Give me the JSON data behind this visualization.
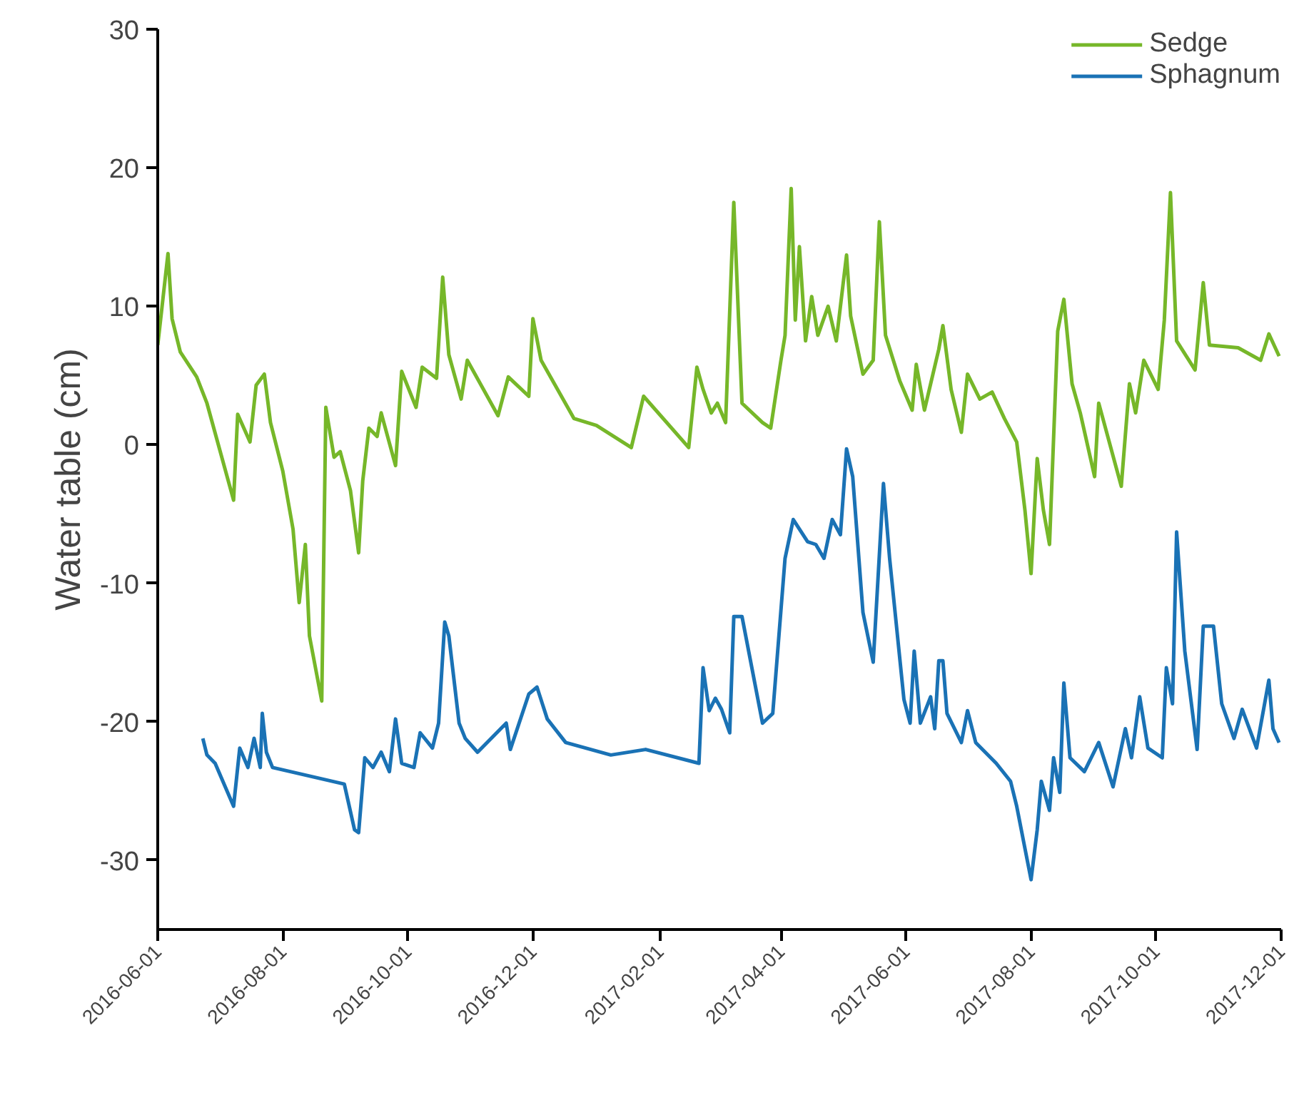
{
  "chart_data": {
    "type": "line",
    "ylabel": "Water table (cm)",
    "xlim": [
      "2016-06-01",
      "2017-12-01"
    ],
    "xticks": [
      "2016-06-01",
      "2016-08-01",
      "2016-10-01",
      "2016-12-01",
      "2017-02-01",
      "2017-04-01",
      "2017-06-01",
      "2017-08-01",
      "2017-10-01",
      "2017-12-01"
    ],
    "ylim": [
      -35,
      30
    ],
    "yticks": [
      -30,
      -20,
      -10,
      0,
      10,
      20,
      30
    ],
    "grid": false,
    "legend": "top right",
    "line_style": "solid",
    "marker": "none",
    "series": [
      {
        "name": "Sedge",
        "color": "#76b729",
        "x": [
          "2016-06-01",
          "2016-06-06",
          "2016-06-08",
          "2016-06-12",
          "2016-06-20",
          "2016-06-25",
          "2016-07-08",
          "2016-07-10",
          "2016-07-16",
          "2016-07-19",
          "2016-07-23",
          "2016-07-26",
          "2016-08-01",
          "2016-08-06",
          "2016-08-09",
          "2016-08-12",
          "2016-08-14",
          "2016-08-20",
          "2016-08-22",
          "2016-08-26",
          "2016-08-29",
          "2016-09-03",
          "2016-09-07",
          "2016-09-09",
          "2016-09-12",
          "2016-09-16",
          "2016-09-18",
          "2016-09-25",
          "2016-09-28",
          "2016-10-05",
          "2016-10-08",
          "2016-10-15",
          "2016-10-18",
          "2016-10-21",
          "2016-10-27",
          "2016-10-30",
          "2016-11-14",
          "2016-11-19",
          "2016-11-29",
          "2016-12-01",
          "2016-12-05",
          "2016-12-21",
          "2017-01-01",
          "2017-01-18",
          "2017-01-24",
          "2017-02-15",
          "2017-02-19",
          "2017-02-22",
          "2017-02-26",
          "2017-03-01",
          "2017-03-05",
          "2017-03-09",
          "2017-03-13",
          "2017-03-23",
          "2017-03-27",
          "2017-04-01",
          "2017-04-03",
          "2017-04-06",
          "2017-04-08",
          "2017-04-10",
          "2017-04-13",
          "2017-04-16",
          "2017-04-19",
          "2017-04-24",
          "2017-04-28",
          "2017-05-03",
          "2017-05-05",
          "2017-05-11",
          "2017-05-16",
          "2017-05-19",
          "2017-05-22",
          "2017-05-29",
          "2017-06-04",
          "2017-06-06",
          "2017-06-10",
          "2017-06-17",
          "2017-06-19",
          "2017-06-23",
          "2017-06-28",
          "2017-07-01",
          "2017-07-07",
          "2017-07-13",
          "2017-07-19",
          "2017-07-25",
          "2017-07-29",
          "2017-08-01",
          "2017-08-04",
          "2017-08-07",
          "2017-08-10",
          "2017-08-14",
          "2017-08-17",
          "2017-08-21",
          "2017-08-25",
          "2017-09-01",
          "2017-09-03",
          "2017-09-14",
          "2017-09-18",
          "2017-09-21",
          "2017-09-25",
          "2017-10-02",
          "2017-10-05",
          "2017-10-08",
          "2017-10-11",
          "2017-10-20",
          "2017-10-24",
          "2017-10-27",
          "2017-11-10",
          "2017-11-21",
          "2017-11-25",
          "2017-11-30"
        ],
        "values": [
          7.2,
          13.8,
          9.1,
          6.7,
          4.9,
          3.0,
          -4.0,
          2.2,
          0.2,
          4.3,
          5.1,
          1.6,
          -1.9,
          -6.1,
          -11.4,
          -7.2,
          -13.8,
          -18.5,
          2.7,
          -0.9,
          -0.5,
          -3.3,
          -7.8,
          -2.6,
          1.2,
          0.6,
          2.3,
          -1.5,
          5.3,
          2.7,
          5.6,
          4.8,
          12.1,
          6.5,
          3.3,
          6.1,
          2.1,
          4.9,
          3.5,
          9.1,
          6.1,
          1.9,
          1.4,
          -0.2,
          3.5,
          -0.2,
          5.6,
          4.0,
          2.3,
          3.0,
          1.6,
          17.5,
          3.0,
          1.6,
          1.2,
          6.1,
          7.9,
          18.5,
          9.0,
          14.3,
          7.5,
          10.7,
          7.9,
          10.0,
          7.5,
          13.7,
          9.3,
          5.1,
          6.1,
          16.1,
          7.9,
          4.6,
          2.5,
          5.8,
          2.5,
          6.9,
          8.6,
          4.0,
          0.9,
          5.1,
          3.3,
          3.8,
          1.9,
          0.2,
          -4.7,
          -9.3,
          -1.0,
          -4.7,
          -7.2,
          8.2,
          10.5,
          4.4,
          2.3,
          -2.3,
          3.0,
          -3.0,
          4.4,
          2.3,
          6.1,
          4.0,
          9.0,
          18.2,
          7.5,
          5.4,
          11.7,
          7.2,
          7.0,
          6.1,
          8.0,
          6.4
        ]
      },
      {
        "name": "Sphagnum",
        "color": "#1a72b5",
        "x": [
          "2016-06-23",
          "2016-06-25",
          "2016-06-29",
          "2016-07-08",
          "2016-07-11",
          "2016-07-15",
          "2016-07-18",
          "2016-07-21",
          "2016-07-22",
          "2016-07-24",
          "2016-07-27",
          "2016-08-31",
          "2016-09-05",
          "2016-09-07",
          "2016-09-10",
          "2016-09-14",
          "2016-09-18",
          "2016-09-22",
          "2016-09-25",
          "2016-09-28",
          "2016-10-04",
          "2016-10-07",
          "2016-10-13",
          "2016-10-16",
          "2016-10-19",
          "2016-10-21",
          "2016-10-26",
          "2016-10-29",
          "2016-11-04",
          "2016-11-18",
          "2016-11-20",
          "2016-11-29",
          "2016-12-03",
          "2016-12-08",
          "2016-12-17",
          "2017-01-08",
          "2017-01-25",
          "2017-02-20",
          "2017-02-22",
          "2017-02-25",
          "2017-02-28",
          "2017-03-03",
          "2017-03-07",
          "2017-03-09",
          "2017-03-13",
          "2017-03-23",
          "2017-03-28",
          "2017-04-03",
          "2017-04-07",
          "2017-04-14",
          "2017-04-18",
          "2017-04-22",
          "2017-04-26",
          "2017-04-30",
          "2017-05-03",
          "2017-05-06",
          "2017-05-11",
          "2017-05-16",
          "2017-05-21",
          "2017-05-24",
          "2017-05-31",
          "2017-06-03",
          "2017-06-05",
          "2017-06-08",
          "2017-06-13",
          "2017-06-15",
          "2017-06-17",
          "2017-06-19",
          "2017-06-21",
          "2017-06-28",
          "2017-07-01",
          "2017-07-05",
          "2017-07-15",
          "2017-07-22",
          "2017-07-25",
          "2017-08-01",
          "2017-08-04",
          "2017-08-06",
          "2017-08-10",
          "2017-08-12",
          "2017-08-15",
          "2017-08-17",
          "2017-08-20",
          "2017-08-27",
          "2017-09-03",
          "2017-09-10",
          "2017-09-16",
          "2017-09-19",
          "2017-09-23",
          "2017-09-27",
          "2017-10-04",
          "2017-10-06",
          "2017-10-09",
          "2017-10-11",
          "2017-10-15",
          "2017-10-21",
          "2017-10-24",
          "2017-10-29",
          "2017-11-02",
          "2017-11-08",
          "2017-11-12",
          "2017-11-19",
          "2017-11-25",
          "2017-11-27",
          "2017-11-30"
        ],
        "values": [
          -21.2,
          -22.4,
          -23.0,
          -26.1,
          -21.9,
          -23.3,
          -21.2,
          -23.3,
          -19.4,
          -22.2,
          -23.3,
          -24.5,
          -27.8,
          -28.0,
          -22.6,
          -23.3,
          -22.2,
          -23.6,
          -19.8,
          -23.0,
          -23.3,
          -20.8,
          -21.9,
          -20.1,
          -12.8,
          -13.8,
          -20.1,
          -21.2,
          -22.2,
          -20.1,
          -22.0,
          -18.0,
          -17.5,
          -19.8,
          -21.5,
          -22.4,
          -22.0,
          -23.0,
          -16.1,
          -19.2,
          -18.3,
          -19.1,
          -20.8,
          -12.4,
          -12.4,
          -20.1,
          -19.4,
          -8.2,
          -5.4,
          -7.0,
          -7.2,
          -8.2,
          -5.4,
          -6.5,
          -0.3,
          -2.3,
          -12.1,
          -15.7,
          -2.8,
          -8.2,
          -18.4,
          -20.1,
          -14.9,
          -20.1,
          -18.2,
          -20.5,
          -15.6,
          -15.6,
          -19.4,
          -21.5,
          -19.2,
          -21.5,
          -23.0,
          -24.3,
          -26.1,
          -31.4,
          -27.8,
          -24.3,
          -26.4,
          -22.6,
          -25.1,
          -17.2,
          -22.6,
          -23.6,
          -21.5,
          -24.7,
          -20.5,
          -22.6,
          -18.2,
          -21.9,
          -22.6,
          -16.1,
          -18.7,
          -6.3,
          -14.9,
          -22.0,
          -13.1,
          -13.1,
          -18.7,
          -21.2,
          -19.1,
          -21.9,
          -17.0,
          -20.5,
          -21.5
        ]
      }
    ]
  }
}
